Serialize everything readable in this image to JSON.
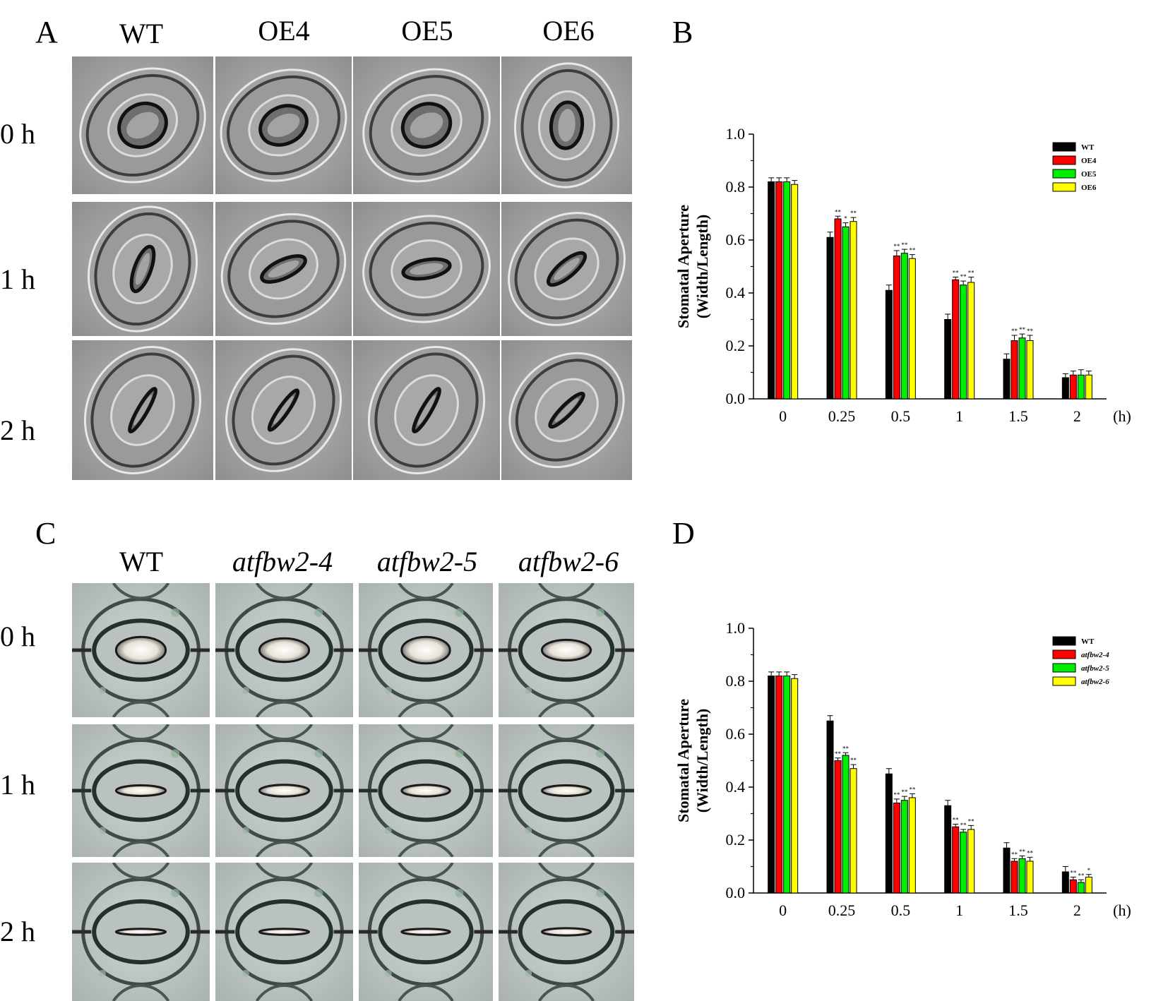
{
  "panels": {
    "A": {
      "letter": "A",
      "columns": [
        "WT",
        "OE4",
        "OE5",
        "OE6"
      ],
      "rows": [
        "0 h",
        "1 h",
        "2 h"
      ]
    },
    "B": {
      "letter": "B"
    },
    "C": {
      "letter": "C",
      "columns": [
        "WT",
        "atfbw2-4",
        "atfbw2-5",
        "atfbw2-6"
      ],
      "rows": [
        "0 h",
        "1 h",
        "2 h"
      ]
    },
    "D": {
      "letter": "D"
    }
  },
  "chart_data": [
    {
      "panel": "B",
      "type": "bar",
      "ylabel_line1": "Stomatal Aperture",
      "ylabel_line2": "(Width/Length)",
      "x_unit": "(h)",
      "categories": [
        "0",
        "0.25",
        "0.5",
        "1",
        "1.5",
        "2"
      ],
      "ylim": [
        0,
        1.0
      ],
      "yticks": [
        "0.0",
        "0.2",
        "0.4",
        "0.6",
        "0.8",
        "1.0"
      ],
      "legend_position": "top-right",
      "series": [
        {
          "name": "WT",
          "color": "#000000",
          "values": [
            0.82,
            0.61,
            0.41,
            0.3,
            0.15,
            0.08
          ],
          "errors": [
            0.015,
            0.02,
            0.02,
            0.02,
            0.02,
            0.015
          ],
          "marks": [
            "",
            "",
            "",
            "",
            "",
            ""
          ]
        },
        {
          "name": "OE4",
          "color": "#ff0000",
          "values": [
            0.82,
            0.68,
            0.54,
            0.45,
            0.22,
            0.09
          ],
          "errors": [
            0.015,
            0.01,
            0.02,
            0.01,
            0.02,
            0.015
          ],
          "marks": [
            "",
            "**",
            "**",
            "**",
            "**",
            ""
          ]
        },
        {
          "name": "OE5",
          "color": "#00ee00",
          "values": [
            0.82,
            0.65,
            0.55,
            0.43,
            0.23,
            0.09
          ],
          "errors": [
            0.015,
            0.015,
            0.015,
            0.015,
            0.015,
            0.02
          ],
          "marks": [
            "",
            "*",
            "**",
            "**",
            "**",
            ""
          ]
        },
        {
          "name": "OE6",
          "color": "#ffff00",
          "values": [
            0.81,
            0.67,
            0.53,
            0.44,
            0.22,
            0.09
          ],
          "errors": [
            0.015,
            0.015,
            0.015,
            0.02,
            0.02,
            0.015
          ],
          "marks": [
            "",
            "**",
            "**",
            "**",
            "**",
            ""
          ]
        }
      ]
    },
    {
      "panel": "D",
      "type": "bar",
      "ylabel_line1": "Stomatal Aperture",
      "ylabel_line2": "(Width/Length)",
      "x_unit": "(h)",
      "categories": [
        "0",
        "0.25",
        "0.5",
        "1",
        "1.5",
        "2"
      ],
      "ylim": [
        0,
        1.0
      ],
      "yticks": [
        "0.0",
        "0.2",
        "0.4",
        "0.6",
        "0.8",
        "1.0"
      ],
      "legend_position": "top-right",
      "series": [
        {
          "name": "WT",
          "color": "#000000",
          "values": [
            0.82,
            0.65,
            0.45,
            0.33,
            0.17,
            0.08
          ],
          "errors": [
            0.015,
            0.02,
            0.02,
            0.02,
            0.02,
            0.02
          ],
          "marks": [
            "",
            "",
            "",
            "",
            "",
            ""
          ]
        },
        {
          "name": "atfbw2-4",
          "color": "#ff0000",
          "values": [
            0.82,
            0.5,
            0.34,
            0.25,
            0.12,
            0.05
          ],
          "errors": [
            0.015,
            0.01,
            0.015,
            0.01,
            0.01,
            0.01
          ],
          "marks": [
            "",
            "**",
            "**",
            "**",
            "**",
            "**"
          ]
        },
        {
          "name": "atfbw2-5",
          "color": "#00ee00",
          "values": [
            0.82,
            0.52,
            0.35,
            0.23,
            0.13,
            0.04
          ],
          "errors": [
            0.015,
            0.01,
            0.015,
            0.01,
            0.01,
            0.01
          ],
          "marks": [
            "",
            "**",
            "**",
            "**",
            "**",
            "**"
          ]
        },
        {
          "name": "atfbw2-6",
          "color": "#ffff00",
          "values": [
            0.81,
            0.47,
            0.36,
            0.24,
            0.12,
            0.06
          ],
          "errors": [
            0.015,
            0.015,
            0.015,
            0.015,
            0.015,
            0.01
          ],
          "marks": [
            "",
            "**",
            "**",
            "**",
            "**",
            "*"
          ]
        }
      ]
    }
  ]
}
